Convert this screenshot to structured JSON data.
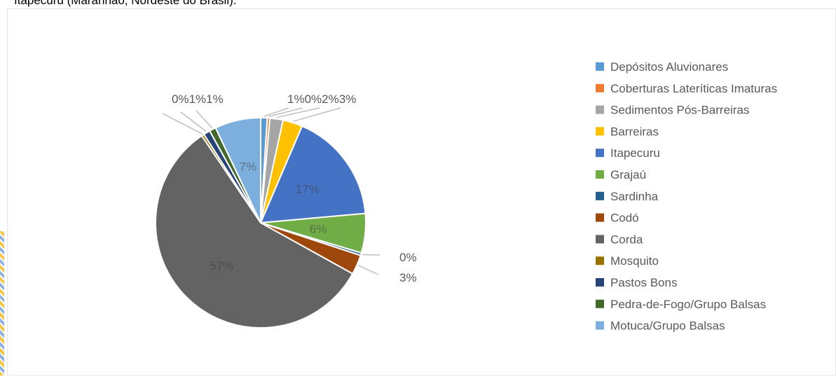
{
  "caption": "Itapecuru (Maranhão, Nordeste do Brasil).",
  "chart_data": {
    "type": "pie",
    "title": "",
    "categories": [
      "Depósitos Aluvionares",
      "Coberturas Lateríticas Imaturas",
      "Sedimentos Pós-Barreiras",
      "Barreiras",
      "Itapecuru",
      "Grajaú",
      "Sardinha",
      "Codó",
      "Corda",
      "Mosquito",
      "Pastos Bons",
      "Pedra-de-Fogo/Grupo Balsas",
      "Motuca/Grupo Balsas"
    ],
    "values": [
      1,
      0,
      2,
      3,
      17,
      6,
      0,
      3,
      57,
      0,
      1,
      1,
      7
    ],
    "labels": [
      "1%",
      "0%",
      "2%",
      "3%",
      "17%",
      "6%",
      "0%",
      "3%",
      "57%",
      "0%",
      "1%",
      "1%",
      "7%"
    ],
    "colors": [
      "#5B9BD5",
      "#ED7D31",
      "#A5A5A5",
      "#FFC000",
      "#4472C4",
      "#70AD47",
      "#255E91",
      "#9E480E",
      "#636363",
      "#997300",
      "#264478",
      "#43682B",
      "#7CAFDD"
    ],
    "legend_position": "right"
  }
}
